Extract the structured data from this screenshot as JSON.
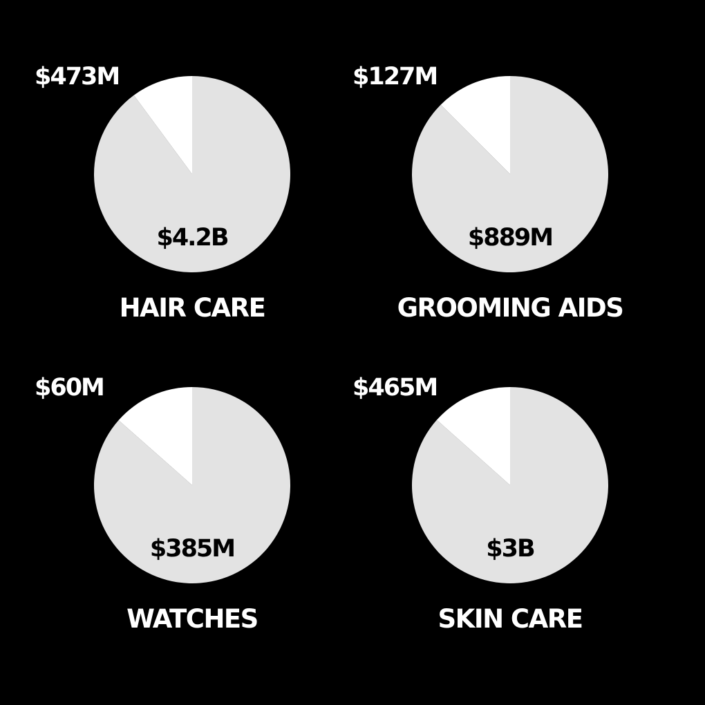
{
  "colors": {
    "background": "#000000",
    "major_slice": "#e3e3e3",
    "minor_slice": "#ffffff",
    "inside_text": "#000000",
    "outside_text": "#ffffff"
  },
  "chart_data": [
    {
      "type": "pie",
      "label": "HAIR CARE",
      "slices": [
        {
          "label": "$4.2B",
          "value": 4200
        },
        {
          "label": "$473M",
          "value": 473
        }
      ]
    },
    {
      "type": "pie",
      "label": "GROOMING AIDS",
      "slices": [
        {
          "label": "$889M",
          "value": 889
        },
        {
          "label": "$127M",
          "value": 127
        }
      ]
    },
    {
      "type": "pie",
      "label": "WATCHES",
      "slices": [
        {
          "label": "$385M",
          "value": 385
        },
        {
          "label": "$60M",
          "value": 60
        }
      ]
    },
    {
      "type": "pie",
      "label": "SKIN CARE",
      "slices": [
        {
          "label": "$3B",
          "value": 3000
        },
        {
          "label": "$465M",
          "value": 465
        }
      ]
    }
  ]
}
